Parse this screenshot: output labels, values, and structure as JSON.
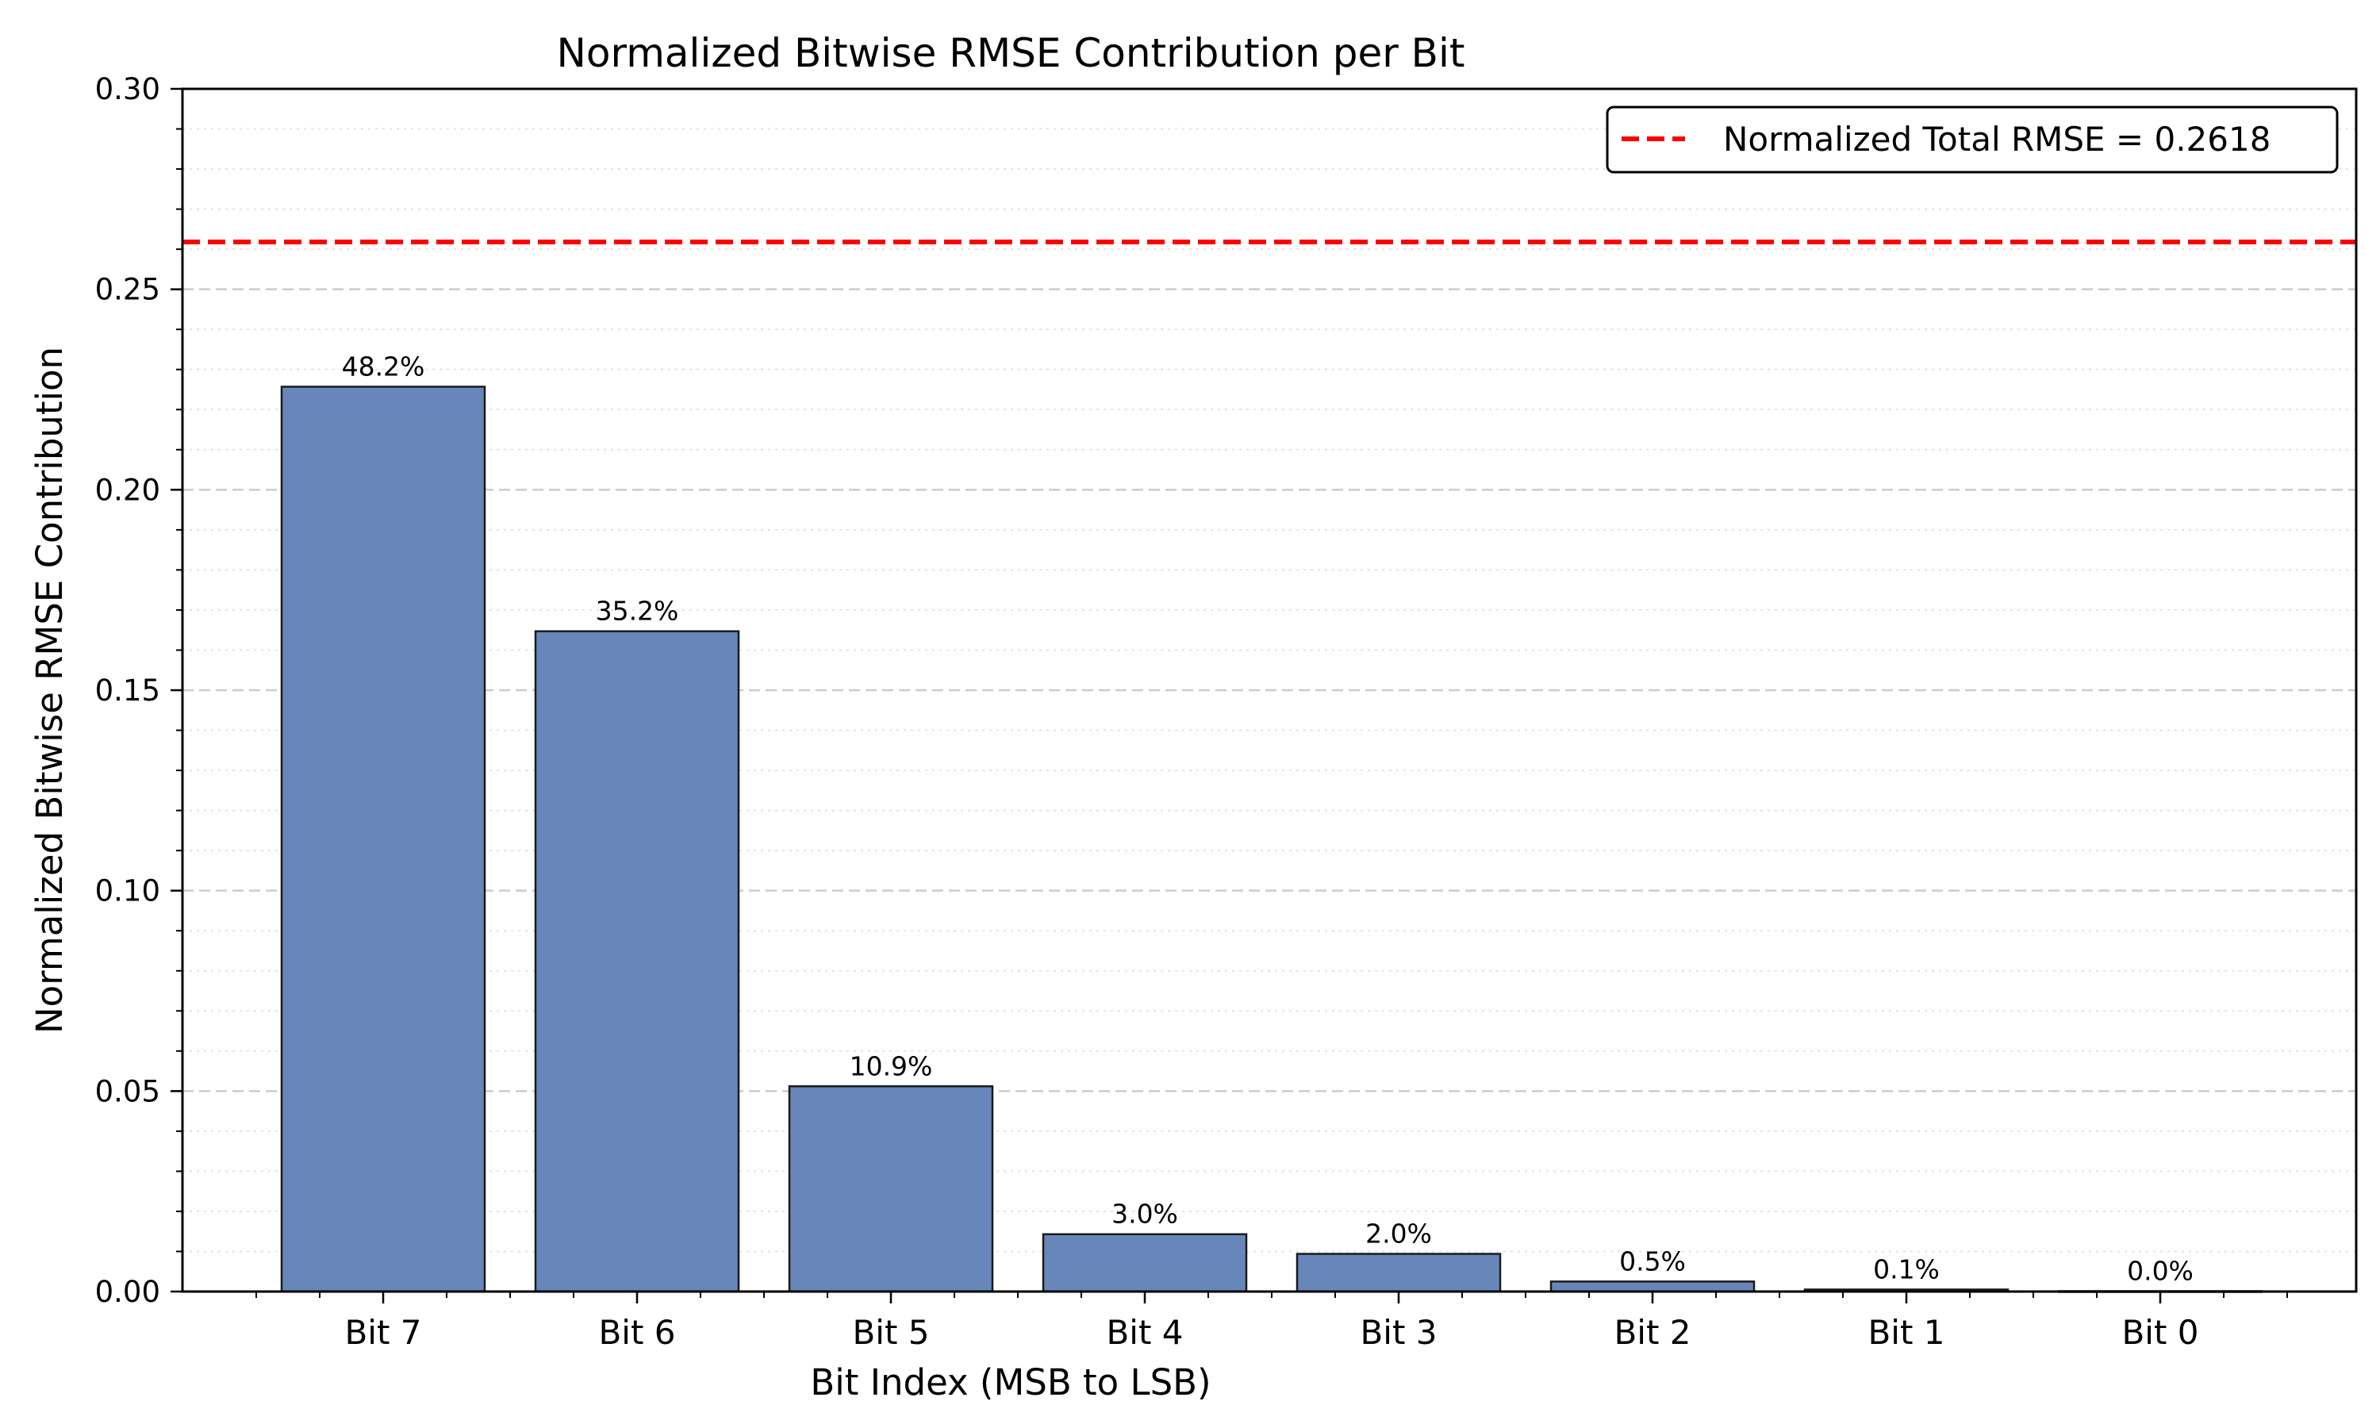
{
  "chart_data": {
    "type": "bar",
    "title": "Normalized Bitwise RMSE Contribution per Bit",
    "xlabel": "Bit Index (MSB to LSB)",
    "ylabel": "Normalized Bitwise RMSE Contribution",
    "categories": [
      "Bit 7",
      "Bit 6",
      "Bit 5",
      "Bit 4",
      "Bit 3",
      "Bit 2",
      "Bit 1",
      "Bit 0"
    ],
    "values": [
      0.2257,
      0.1647,
      0.0512,
      0.0143,
      0.0094,
      0.0025,
      0.0005,
      0.0001
    ],
    "data_labels": [
      "48.2%",
      "35.2%",
      "10.9%",
      "3.0%",
      "2.0%",
      "0.5%",
      "0.1%",
      "0.0%"
    ],
    "ylim": [
      0,
      0.3
    ],
    "yticks": [
      0.0,
      0.05,
      0.1,
      0.15,
      0.2,
      0.25,
      0.3
    ],
    "ytick_labels": [
      "0.00",
      "0.05",
      "0.10",
      "0.15",
      "0.20",
      "0.25",
      "0.30"
    ],
    "reference_line": {
      "value": 0.2618,
      "label": "Normalized Total RMSE = 0.2618",
      "color": "#ff0000",
      "style": "dashed"
    },
    "bar_color": "#6787bb",
    "bar_edge_color": "#1a1a1a",
    "grid": "horizontal dashed major, dotted minor",
    "legend_position": "top-right"
  }
}
